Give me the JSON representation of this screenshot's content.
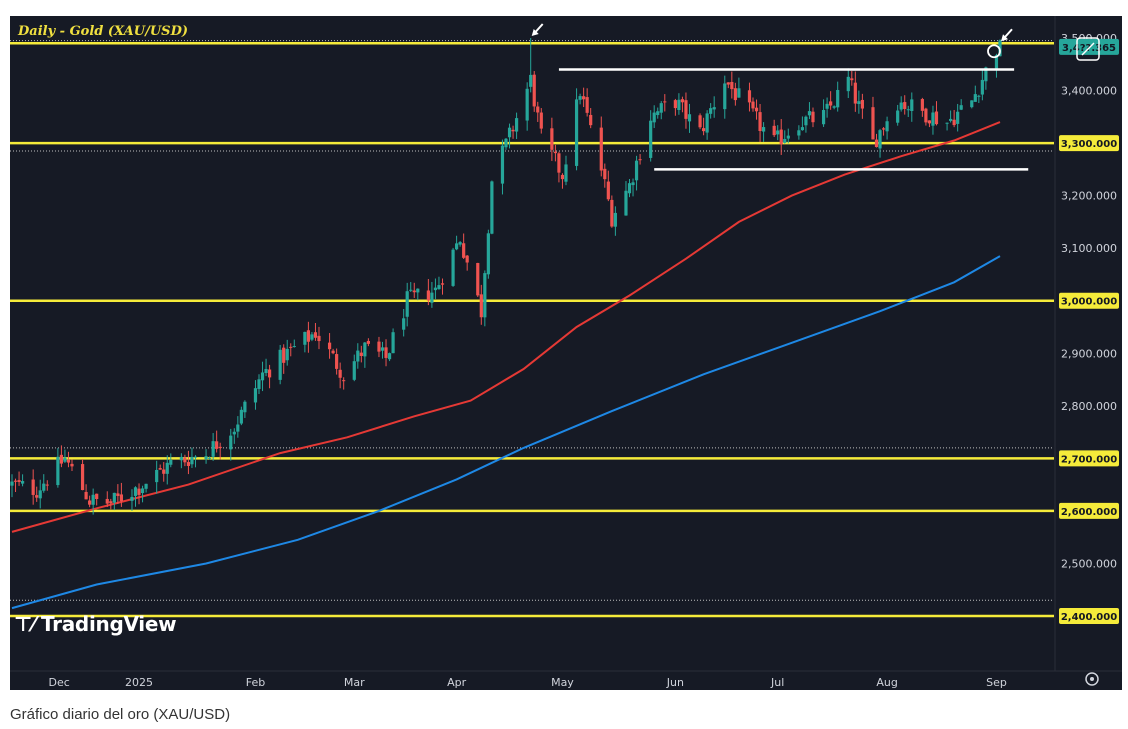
{
  "caption": "Gráfico diario del oro (XAU/USD)",
  "watermark": "TradingView",
  "chart_data": {
    "type": "candlestick",
    "title": "Daily - Gold (XAU/USD)",
    "ylim": [
      2370,
      3530
    ],
    "y_ticks": [
      "2,400.000",
      "2,500.000",
      "2,600.000",
      "2,700.000",
      "2,800.000",
      "2,900.000",
      "3,000.000",
      "3,100.000",
      "3,200.000",
      "3,300.000",
      "3,400.000",
      "3,500.000"
    ],
    "x_ticks": [
      {
        "label": "Dec",
        "date": "2024-12-02"
      },
      {
        "label": "2025",
        "date": "2025-01-01"
      },
      {
        "label": "Feb",
        "date": "2025-02-03"
      },
      {
        "label": "Mar",
        "date": "2025-03-03"
      },
      {
        "label": "Apr",
        "date": "2025-04-01"
      },
      {
        "label": "May",
        "date": "2025-05-01"
      },
      {
        "label": "Jun",
        "date": "2025-06-02"
      },
      {
        "label": "Jul",
        "date": "2025-07-01"
      },
      {
        "label": "Aug",
        "date": "2025-08-01"
      },
      {
        "label": "Sep",
        "date": "2025-09-01"
      }
    ],
    "current_price": "3,4??.365",
    "current_value": 3483,
    "support_resistance_levels": [
      2400,
      2600,
      2700,
      3000,
      3300,
      3490
    ],
    "dotted_levels": [
      2430,
      2720,
      3285,
      3495
    ],
    "range_lines": [
      {
        "from": "2025-04-30",
        "to": "2025-09-06",
        "value": 3440
      },
      {
        "from": "2025-05-27",
        "to": "2025-09-10",
        "value": 3250
      }
    ],
    "ma_red": [
      [
        "2024-11-26",
        2560
      ],
      [
        "2024-12-20",
        2605
      ],
      [
        "2025-01-15",
        2650
      ],
      [
        "2025-02-10",
        2710
      ],
      [
        "2025-03-01",
        2740
      ],
      [
        "2025-03-20",
        2780
      ],
      [
        "2025-04-05",
        2810
      ],
      [
        "2025-04-20",
        2870
      ],
      [
        "2025-05-05",
        2950
      ],
      [
        "2025-05-20",
        3010
      ],
      [
        "2025-06-05",
        3080
      ],
      [
        "2025-06-20",
        3150
      ],
      [
        "2025-07-05",
        3200
      ],
      [
        "2025-07-20",
        3240
      ],
      [
        "2025-08-05",
        3275
      ],
      [
        "2025-08-20",
        3305
      ],
      [
        "2025-09-02",
        3340
      ]
    ],
    "ma_blue": [
      [
        "2024-11-26",
        2415
      ],
      [
        "2024-12-20",
        2460
      ],
      [
        "2025-01-20",
        2500
      ],
      [
        "2025-02-15",
        2545
      ],
      [
        "2025-03-10",
        2600
      ],
      [
        "2025-04-01",
        2660
      ],
      [
        "2025-04-20",
        2720
      ],
      [
        "2025-05-15",
        2790
      ],
      [
        "2025-06-10",
        2860
      ],
      [
        "2025-07-05",
        2920
      ],
      [
        "2025-07-30",
        2980
      ],
      [
        "2025-08-20",
        3035
      ],
      [
        "2025-09-02",
        3085
      ]
    ],
    "close_path": [
      [
        "2024-11-26",
        2650
      ],
      [
        "2024-12-03",
        2640
      ],
      [
        "2024-12-11",
        2700
      ],
      [
        "2024-12-18",
        2620
      ],
      [
        "2024-12-24",
        2615
      ],
      [
        "2025-01-02",
        2650
      ],
      [
        "2025-01-10",
        2690
      ],
      [
        "2025-01-20",
        2710
      ],
      [
        "2025-01-28",
        2760
      ],
      [
        "2025-02-05",
        2860
      ],
      [
        "2025-02-12",
        2900
      ],
      [
        "2025-02-20",
        2940
      ],
      [
        "2025-02-28",
        2860
      ],
      [
        "2025-03-06",
        2910
      ],
      [
        "2025-03-12",
        2890
      ],
      [
        "2025-03-18",
        3000
      ],
      [
        "2025-03-26",
        3020
      ],
      [
        "2025-04-02",
        3120
      ],
      [
        "2025-04-08",
        2980
      ],
      [
        "2025-04-11",
        3230
      ],
      [
        "2025-04-17",
        3330
      ],
      [
        "2025-04-22",
        3420
      ],
      [
        "2025-04-25",
        3310
      ],
      [
        "2025-05-01",
        3240
      ],
      [
        "2025-05-06",
        3400
      ],
      [
        "2025-05-12",
        3250
      ],
      [
        "2025-05-15",
        3160
      ],
      [
        "2025-05-20",
        3220
      ],
      [
        "2025-05-26",
        3350
      ],
      [
        "2025-06-02",
        3380
      ],
      [
        "2025-06-09",
        3320
      ],
      [
        "2025-06-16",
        3420
      ],
      [
        "2025-06-23",
        3360
      ],
      [
        "2025-06-30",
        3300
      ],
      [
        "2025-07-07",
        3340
      ],
      [
        "2025-07-14",
        3350
      ],
      [
        "2025-07-21",
        3420
      ],
      [
        "2025-07-28",
        3300
      ],
      [
        "2025-08-04",
        3380
      ],
      [
        "2025-08-11",
        3360
      ],
      [
        "2025-08-18",
        3340
      ],
      [
        "2025-08-25",
        3380
      ],
      [
        "2025-09-01",
        3480
      ]
    ],
    "high_points": [
      [
        "2025-04-22",
        3500
      ],
      [
        "2025-09-02",
        3490
      ]
    ],
    "markers": [
      {
        "date": "2025-04-22",
        "value": 3500,
        "type": "arrow"
      },
      {
        "date": "2025-09-02",
        "value": 3490,
        "type": "arrow-circle"
      }
    ],
    "colors": {
      "background": "#161a25",
      "up": "#26a69a",
      "down": "#ef5350",
      "level": "#f5eb3a",
      "ma_red": "#e53935",
      "ma_blue": "#1e88e5",
      "range": "#ffffff",
      "badge": "#26a69a"
    }
  }
}
